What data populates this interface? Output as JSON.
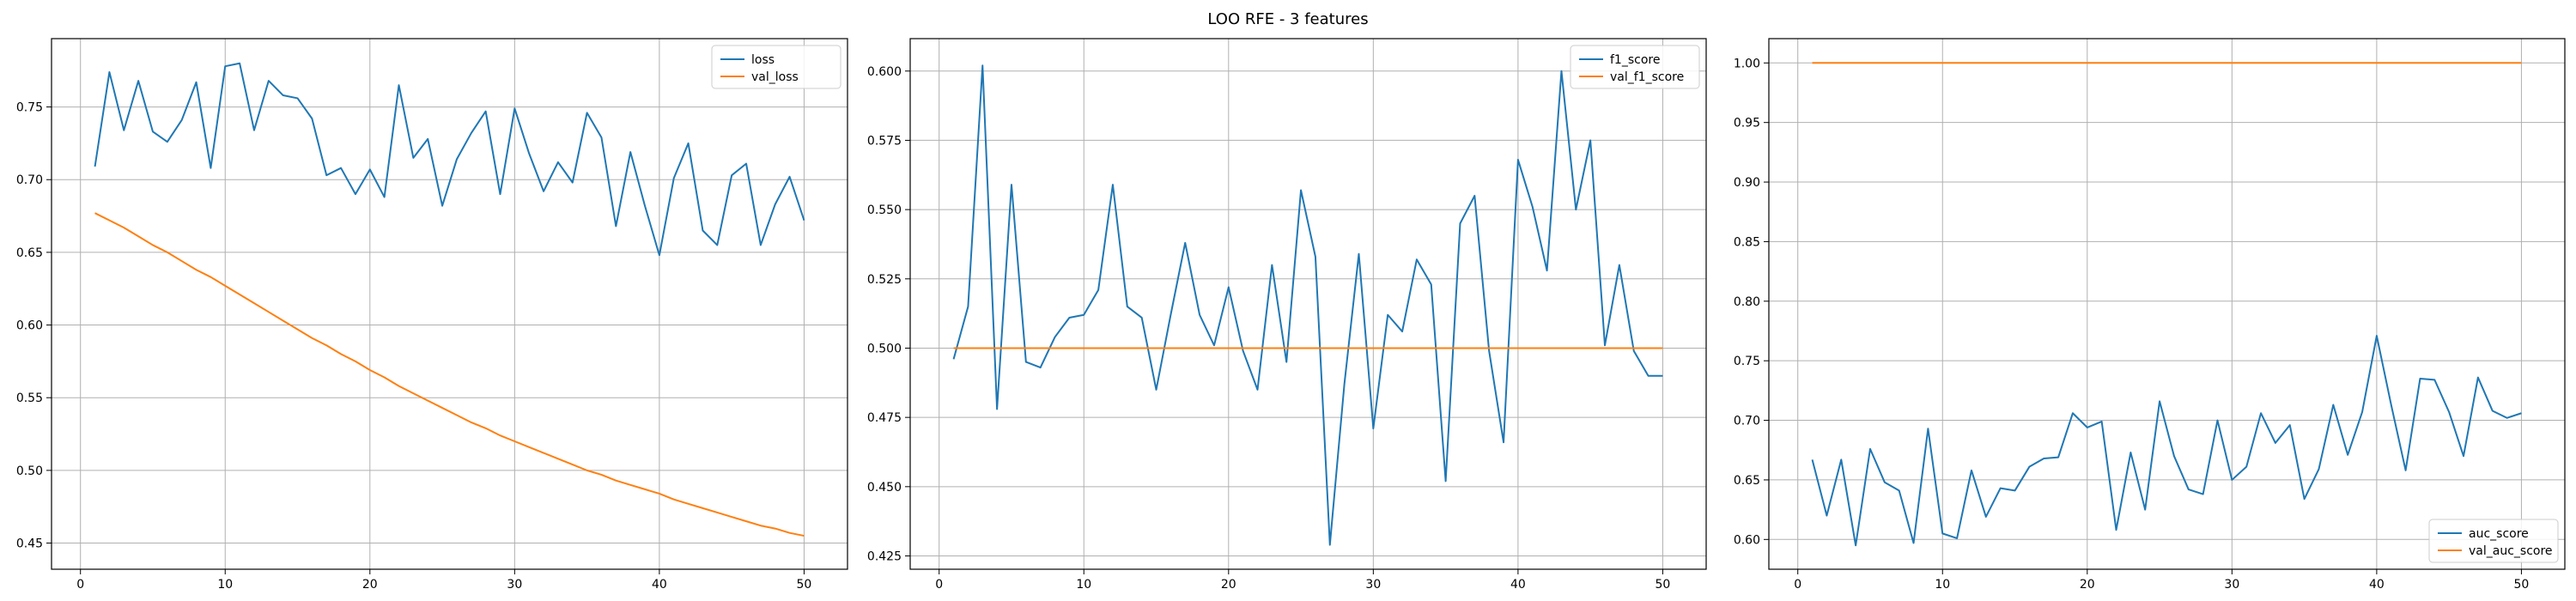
{
  "figure": {
    "title": "LOO RFE - 3 features"
  },
  "colors": {
    "series1": "#1f77b4",
    "series2": "#ff7f0e",
    "grid": "#b0b0b0",
    "axis": "#000000"
  },
  "chart_data": [
    {
      "type": "line",
      "title": "",
      "xlabel": "",
      "ylabel": "",
      "grid": true,
      "legend_position": "top-right",
      "xlim": [
        -2,
        53
      ],
      "ylim": [
        0.432,
        0.797
      ],
      "xticks": [
        0,
        10,
        20,
        30,
        40,
        50
      ],
      "yticks": [
        0.45,
        0.5,
        0.55,
        0.6,
        0.65,
        0.7,
        0.75
      ],
      "ytick_labels": [
        "0.45",
        "0.50",
        "0.55",
        "0.60",
        "0.65",
        "0.70",
        "0.75"
      ],
      "x": [
        1,
        2,
        3,
        4,
        5,
        6,
        7,
        8,
        9,
        10,
        11,
        12,
        13,
        14,
        15,
        16,
        17,
        18,
        19,
        20,
        21,
        22,
        23,
        24,
        25,
        26,
        27,
        28,
        29,
        30,
        31,
        32,
        33,
        34,
        35,
        36,
        37,
        38,
        39,
        40,
        41,
        42,
        43,
        44,
        45,
        46,
        47,
        48,
        49,
        50
      ],
      "series": [
        {
          "name": "loss",
          "values": [
            0.709,
            0.774,
            0.734,
            0.768,
            0.733,
            0.726,
            0.741,
            0.767,
            0.708,
            0.778,
            0.78,
            0.734,
            0.768,
            0.758,
            0.756,
            0.742,
            0.703,
            0.708,
            0.69,
            0.707,
            0.688,
            0.765,
            0.715,
            0.728,
            0.682,
            0.714,
            0.732,
            0.747,
            0.69,
            0.749,
            0.718,
            0.692,
            0.712,
            0.698,
            0.746,
            0.729,
            0.668,
            0.719,
            0.682,
            0.648,
            0.701,
            0.725,
            0.665,
            0.655,
            0.703,
            0.711,
            0.655,
            0.683,
            0.702,
            0.672
          ]
        },
        {
          "name": "val_loss",
          "values": [
            0.677,
            0.672,
            0.667,
            0.661,
            0.655,
            0.65,
            0.644,
            0.638,
            0.633,
            0.627,
            0.621,
            0.615,
            0.609,
            0.603,
            0.597,
            0.591,
            0.586,
            0.58,
            0.575,
            0.569,
            0.564,
            0.558,
            0.553,
            0.548,
            0.543,
            0.538,
            0.533,
            0.529,
            0.524,
            0.52,
            0.516,
            0.512,
            0.508,
            0.504,
            0.5,
            0.497,
            0.493,
            0.49,
            0.487,
            0.484,
            0.48,
            0.477,
            0.474,
            0.471,
            0.468,
            0.465,
            0.462,
            0.46,
            0.457,
            0.455
          ]
        }
      ]
    },
    {
      "type": "line",
      "title": "",
      "xlabel": "",
      "ylabel": "",
      "grid": true,
      "legend_position": "top-right",
      "xlim": [
        -2,
        53
      ],
      "ylim": [
        0.4202,
        0.6117
      ],
      "xticks": [
        0,
        10,
        20,
        30,
        40,
        50
      ],
      "yticks": [
        0.425,
        0.45,
        0.475,
        0.5,
        0.525,
        0.55,
        0.575,
        0.6
      ],
      "ytick_labels": [
        "0.425",
        "0.450",
        "0.475",
        "0.500",
        "0.525",
        "0.550",
        "0.575",
        "0.600"
      ],
      "x": [
        1,
        2,
        3,
        4,
        5,
        6,
        7,
        8,
        9,
        10,
        11,
        12,
        13,
        14,
        15,
        16,
        17,
        18,
        19,
        20,
        21,
        22,
        23,
        24,
        25,
        26,
        27,
        28,
        29,
        30,
        31,
        32,
        33,
        34,
        35,
        36,
        37,
        38,
        39,
        40,
        41,
        42,
        43,
        44,
        45,
        46,
        47,
        48,
        49,
        50
      ],
      "series": [
        {
          "name": "f1_score",
          "values": [
            0.496,
            0.515,
            0.602,
            0.478,
            0.559,
            0.495,
            0.493,
            0.504,
            0.511,
            0.512,
            0.521,
            0.559,
            0.515,
            0.511,
            0.485,
            0.512,
            0.538,
            0.512,
            0.501,
            0.522,
            0.499,
            0.485,
            0.53,
            0.495,
            0.557,
            0.533,
            0.429,
            0.487,
            0.534,
            0.471,
            0.512,
            0.506,
            0.532,
            0.523,
            0.452,
            0.545,
            0.555,
            0.499,
            0.466,
            0.568,
            0.551,
            0.528,
            0.6,
            0.55,
            0.575,
            0.501,
            0.53,
            0.499,
            0.49,
            0.49
          ]
        },
        {
          "name": "val_f1_score",
          "values": [
            0.5,
            0.5,
            0.5,
            0.5,
            0.5,
            0.5,
            0.5,
            0.5,
            0.5,
            0.5,
            0.5,
            0.5,
            0.5,
            0.5,
            0.5,
            0.5,
            0.5,
            0.5,
            0.5,
            0.5,
            0.5,
            0.5,
            0.5,
            0.5,
            0.5,
            0.5,
            0.5,
            0.5,
            0.5,
            0.5,
            0.5,
            0.5,
            0.5,
            0.5,
            0.5,
            0.5,
            0.5,
            0.5,
            0.5,
            0.5,
            0.5,
            0.5,
            0.5,
            0.5,
            0.5,
            0.5,
            0.5,
            0.5,
            0.5,
            0.5
          ]
        }
      ]
    },
    {
      "type": "line",
      "title": "",
      "xlabel": "",
      "ylabel": "",
      "grid": true,
      "legend_position": "bottom-right",
      "xlim": [
        -2,
        53
      ],
      "ylim": [
        0.575,
        1.0204
      ],
      "xticks": [
        0,
        10,
        20,
        30,
        40,
        50
      ],
      "yticks": [
        0.6,
        0.65,
        0.7,
        0.75,
        0.8,
        0.85,
        0.9,
        0.95,
        1.0
      ],
      "ytick_labels": [
        "0.60",
        "0.65",
        "0.70",
        "0.75",
        "0.80",
        "0.85",
        "0.90",
        "0.95",
        "1.00"
      ],
      "x": [
        1,
        2,
        3,
        4,
        5,
        6,
        7,
        8,
        9,
        10,
        11,
        12,
        13,
        14,
        15,
        16,
        17,
        18,
        19,
        20,
        21,
        22,
        23,
        24,
        25,
        26,
        27,
        28,
        29,
        30,
        31,
        32,
        33,
        34,
        35,
        36,
        37,
        38,
        39,
        40,
        41,
        42,
        43,
        44,
        45,
        46,
        47,
        48,
        49,
        50
      ],
      "series": [
        {
          "name": "auc_score",
          "values": [
            0.667,
            0.62,
            0.667,
            0.595,
            0.676,
            0.648,
            0.641,
            0.597,
            0.693,
            0.605,
            0.601,
            0.658,
            0.619,
            0.643,
            0.641,
            0.661,
            0.668,
            0.669,
            0.706,
            0.694,
            0.699,
            0.608,
            0.673,
            0.625,
            0.716,
            0.67,
            0.642,
            0.638,
            0.7,
            0.65,
            0.661,
            0.706,
            0.681,
            0.696,
            0.634,
            0.659,
            0.713,
            0.671,
            0.707,
            0.771,
            0.713,
            0.658,
            0.735,
            0.734,
            0.707,
            0.67,
            0.736,
            0.708,
            0.702,
            0.706
          ]
        },
        {
          "name": "val_auc_score",
          "values": [
            1.0,
            1.0,
            1.0,
            1.0,
            1.0,
            1.0,
            1.0,
            1.0,
            1.0,
            1.0,
            1.0,
            1.0,
            1.0,
            1.0,
            1.0,
            1.0,
            1.0,
            1.0,
            1.0,
            1.0,
            1.0,
            1.0,
            1.0,
            1.0,
            1.0,
            1.0,
            1.0,
            1.0,
            1.0,
            1.0,
            1.0,
            1.0,
            1.0,
            1.0,
            1.0,
            1.0,
            1.0,
            1.0,
            1.0,
            1.0,
            1.0,
            1.0,
            1.0,
            1.0,
            1.0,
            1.0,
            1.0,
            1.0,
            1.0,
            1.0
          ]
        }
      ]
    }
  ]
}
